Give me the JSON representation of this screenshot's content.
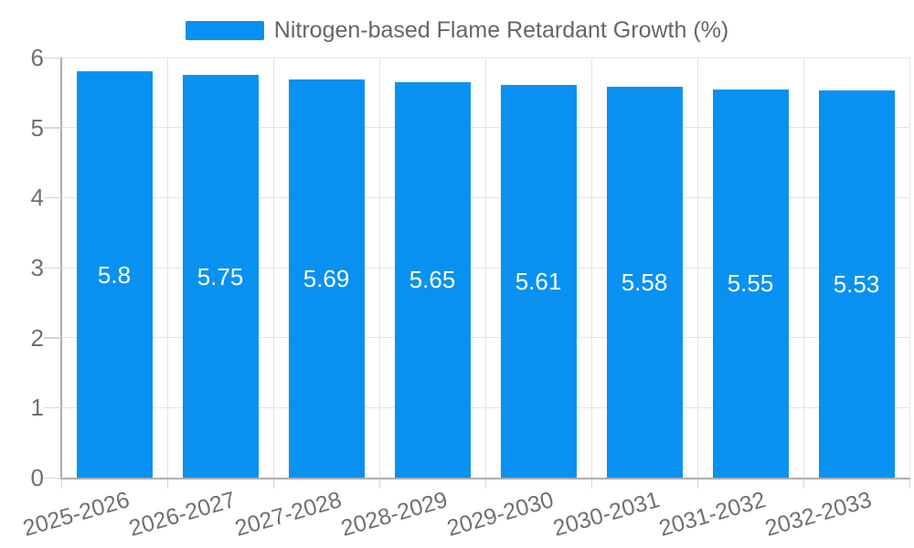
{
  "chart_data": {
    "type": "bar",
    "title": "Nitrogen-based Flame Retardant Growth (%)",
    "legend_entries": [
      "Nitrogen-based Flame Retardant Growth (%)"
    ],
    "legend_position": "top-center",
    "categories": [
      "2025-2026",
      "2026-2027",
      "2027-2028",
      "2028-2029",
      "2029-2030",
      "2030-2031",
      "2031-2032",
      "2032-2033"
    ],
    "values": [
      5.8,
      5.75,
      5.69,
      5.65,
      5.61,
      5.58,
      5.55,
      5.53
    ],
    "value_labels": [
      "5.8",
      "5.75",
      "5.69",
      "5.65",
      "5.61",
      "5.58",
      "5.55",
      "5.53"
    ],
    "xlabel": "",
    "ylabel": "",
    "ylim": [
      0,
      6
    ],
    "ytick_labels": [
      "0",
      "1",
      "2",
      "3",
      "4",
      "5",
      "6"
    ],
    "grid": true,
    "bar_label_position": "inside-center",
    "x_label_rotation_deg": -16,
    "colors": {
      "bar": "#0991f2",
      "bar_label": "#ffffff",
      "axis_text": "#707070",
      "legend_text": "#666666",
      "grid_line": "#e4e4e4",
      "axis_line": "#adadad",
      "tick_line": "#d6d6d6",
      "background": "#ffffff"
    }
  }
}
